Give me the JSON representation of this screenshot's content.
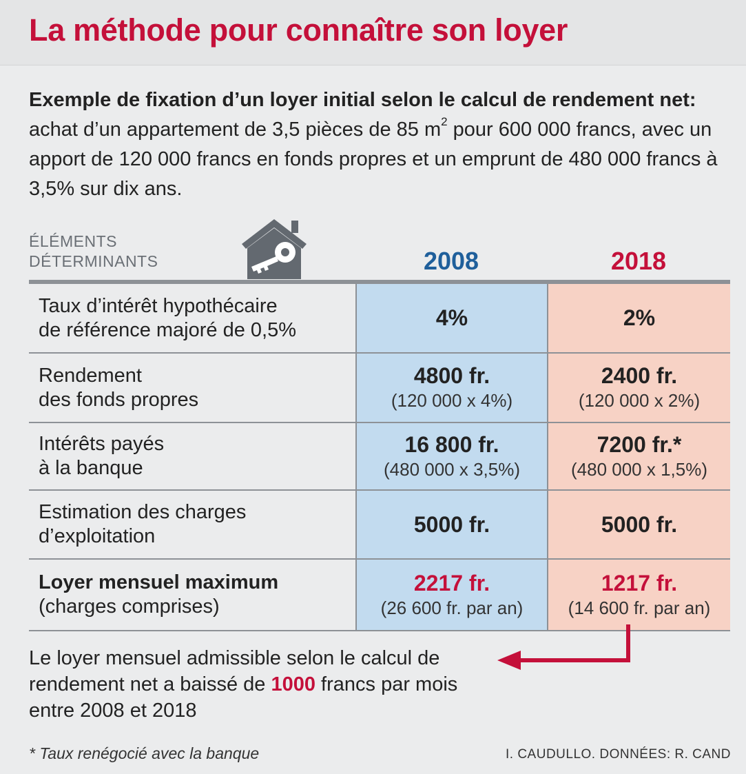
{
  "title": "La méthode pour connaître son loyer",
  "intro": {
    "bold": "Exemple de fixation d’un loyer initial selon le calcul de rendement net:",
    "text_a": "achat d’un appartement de 3,5 pièces de 85 m",
    "sup": "2",
    "text_b": "pour 600 000 francs, avec un apport de 120 000 francs en fonds propres et un emprunt de 480 000 francs à 3,5% sur dix ans."
  },
  "table": {
    "label_line1": "ÉLÉMENTS",
    "label_line2": "DÉTERMINANTS",
    "years": [
      "2008",
      "2018"
    ],
    "rows": [
      {
        "label": [
          "Taux d’intérêt hypothécaire",
          "de référence majoré de 0,5%"
        ],
        "v2008": "4%",
        "s2008": "",
        "v2018": "2%",
        "s2018": ""
      },
      {
        "label": [
          "Rendement",
          "des fonds propres"
        ],
        "v2008": "4800 fr.",
        "s2008": "(120 000 x 4%)",
        "v2018": "2400 fr.",
        "s2018": "(120 000 x 2%)"
      },
      {
        "label": [
          "Intérêts payés",
          "à la banque"
        ],
        "v2008": "16 800 fr.",
        "s2008": "(480 000 x 3,5%)",
        "v2018": "7200 fr.*",
        "s2018": "(480 000 x 1,5%)"
      },
      {
        "label": [
          "Estimation des charges",
          "d’exploitation"
        ],
        "v2008": "5000 fr.",
        "s2008": "",
        "v2018": "5000 fr.",
        "s2018": ""
      },
      {
        "label": [
          "Loyer mensuel maximum",
          "(charges comprises)"
        ],
        "v2008": "2217 fr.",
        "s2008": "(26 600 fr. par an)",
        "v2018": "1217 fr.",
        "s2018": "(14 600 fr. par an)"
      }
    ]
  },
  "conclusion": {
    "before": "Le loyer mensuel admissible selon le calcul de rendement net a baissé de",
    "highlight": "1000",
    "after": "francs par mois entre 2008 et 2018"
  },
  "footnote": "* Taux renégocié avec la banque",
  "credit": "I. CAUDULLO. DONNÉES: R. CAND",
  "colors": {
    "accent_red": "#c4103a",
    "accent_blue": "#1f5f9b",
    "col2008_bg": "#c2dbef",
    "col2018_bg": "#f7d2c5"
  },
  "icons": [
    "house-key-icon",
    "arrow-left-icon"
  ]
}
